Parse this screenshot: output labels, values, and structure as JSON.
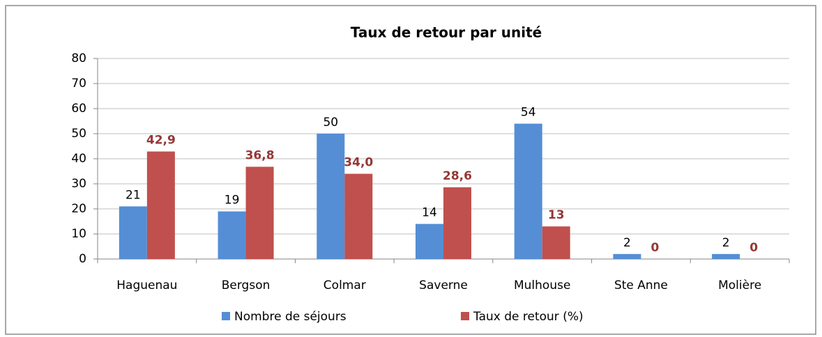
{
  "chart_data": {
    "type": "bar",
    "title": "Taux de retour par unité",
    "categories": [
      "Haguenau",
      "Bergson",
      "Colmar",
      "Saverne",
      "Mulhouse",
      "Ste Anne",
      "Molière"
    ],
    "series": [
      {
        "name": "Nombre de séjours",
        "color": "#558ed5",
        "values": [
          21,
          19,
          50,
          14,
          54,
          2,
          2
        ]
      },
      {
        "name": "Taux de retour (%)",
        "color": "#c0504d",
        "values": [
          42.9,
          36.8,
          34.0,
          28.6,
          13,
          0,
          0
        ],
        "value_labels": [
          "42,9",
          "36,8",
          "34,0",
          "28,6",
          "13",
          "0",
          "0"
        ]
      }
    ],
    "ylim": [
      0,
      80
    ],
    "yticks": [
      0,
      10,
      20,
      30,
      40,
      50,
      60,
      70,
      80
    ],
    "grid": true,
    "legend": "bottom"
  }
}
